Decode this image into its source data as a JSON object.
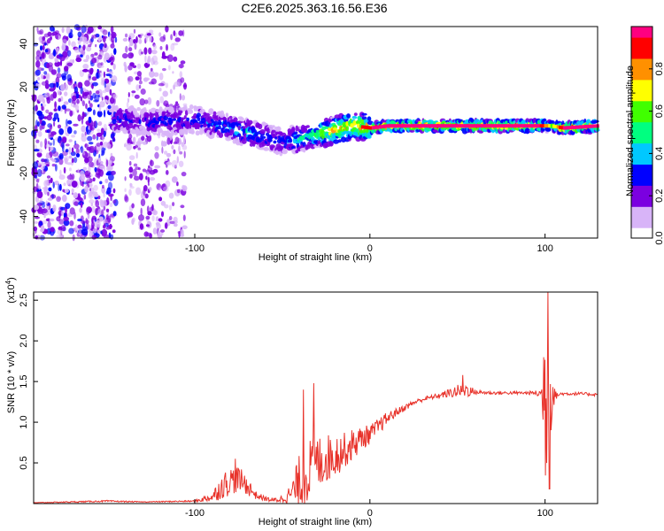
{
  "chart_data": [
    {
      "type": "heatmap",
      "title": "C2E6.2025.363.16.56.E36",
      "xlabel": "Height of straight line (km)",
      "ylabel": "Frequency (Hz)",
      "xlim": [
        -192,
        130
      ],
      "ylim": [
        -50,
        48
      ],
      "xticks": [
        -100,
        0,
        100
      ],
      "yticks": [
        -40,
        -20,
        0,
        20,
        40
      ],
      "colorbar": {
        "label": "Normalized spectral amplitude",
        "range": [
          0,
          1
        ],
        "ticks": [
          "0.0",
          "0.2",
          "0.4",
          "0.6",
          "0.8"
        ],
        "colors": [
          "#ffffff",
          "#d8b4f8",
          "#7b00e0",
          "#0000ff",
          "#00c8ff",
          "#00ff80",
          "#40ff00",
          "#ffff00",
          "#ff9000",
          "#ff0000",
          "#ff0080"
        ]
      },
      "ridge": {
        "description_points_x": [
          -145,
          -130,
          -110,
          -100,
          -90,
          -80,
          -70,
          -60,
          -50,
          -40,
          -30,
          -20,
          -10,
          0,
          10,
          20,
          40,
          60,
          80,
          90,
          95,
          100,
          103,
          110,
          130
        ],
        "description_points_y": [
          5,
          4,
          4,
          5,
          3,
          1,
          -1,
          -3,
          -5,
          -4,
          -2,
          0,
          2,
          1,
          2,
          2,
          2,
          2,
          2,
          2,
          2,
          2,
          2,
          1,
          2
        ],
        "amplitude": [
          0.35,
          0.35,
          0.35,
          0.35,
          0.4,
          0.45,
          0.5,
          0.45,
          0.35,
          0.55,
          0.65,
          0.85,
          0.9,
          0.95,
          1.0,
          1.0,
          1.0,
          1.0,
          1.0,
          1.0,
          1.0,
          0.8,
          0.6,
          1.0,
          1.0
        ]
      },
      "noise_bands": [
        {
          "x_range": [
            -192,
            -145
          ],
          "density": "high"
        },
        {
          "x_range": [
            -140,
            -105
          ],
          "density": "medium"
        }
      ]
    },
    {
      "type": "line",
      "title": "",
      "xlabel": "Height of straight line (km)",
      "ylabel": "SNR (10 * v/v)",
      "y_multiplier": "(x10^4)",
      "y_multiplier_base": "(x10",
      "y_multiplier_exp": "4",
      "y_multiplier_close": ")",
      "xlim": [
        -192,
        130
      ],
      "ylim": [
        0,
        2.6
      ],
      "xticks": [
        -100,
        0,
        100
      ],
      "yticks": [
        0.5,
        1.0,
        1.5,
        2.0,
        2.5
      ],
      "ytick_labels": [
        "0.5",
        "1.0",
        "1.5",
        "2.0",
        "2.5"
      ],
      "series": [
        {
          "name": "SNR",
          "color": "#e8322a",
          "envelope_x": [
            -192,
            -150,
            -130,
            -100,
            -90,
            -85,
            -80,
            -75,
            -70,
            -65,
            -60,
            -55,
            -50,
            -45,
            -40,
            -35,
            -30,
            -25,
            -20,
            -15,
            -10,
            -5,
            0,
            5,
            10,
            15,
            20,
            25,
            30,
            40,
            50,
            55,
            60,
            70,
            80,
            90,
            95,
            98,
            100,
            102,
            104,
            106,
            110,
            120,
            130
          ],
          "envelope_mean": [
            0.01,
            0.03,
            0.02,
            0.03,
            0.08,
            0.2,
            0.28,
            0.3,
            0.22,
            0.1,
            0.06,
            0.04,
            0.06,
            0.12,
            0.28,
            0.4,
            0.5,
            0.55,
            0.6,
            0.65,
            0.72,
            0.8,
            0.85,
            0.95,
            1.05,
            1.12,
            1.18,
            1.24,
            1.28,
            1.33,
            1.38,
            1.4,
            1.37,
            1.36,
            1.36,
            1.36,
            1.36,
            1.34,
            1.4,
            1.3,
            1.38,
            1.33,
            1.35,
            1.35,
            1.34
          ],
          "envelope_amp": [
            0.004,
            0.01,
            0.005,
            0.01,
            0.06,
            0.15,
            0.18,
            0.16,
            0.12,
            0.05,
            0.03,
            0.03,
            0.05,
            0.12,
            0.35,
            0.4,
            0.35,
            0.3,
            0.28,
            0.22,
            0.2,
            0.15,
            0.12,
            0.1,
            0.08,
            0.05,
            0.04,
            0.03,
            0.03,
            0.03,
            0.08,
            0.1,
            0.03,
            0.02,
            0.02,
            0.02,
            0.03,
            0.1,
            1.2,
            1.0,
            0.3,
            0.05,
            0.02,
            0.02,
            0.02
          ],
          "peaks": [
            {
              "x": 101.5,
              "y": 2.6
            },
            {
              "x": 102.5,
              "y": 0.18
            },
            {
              "x": -32,
              "y": 1.48
            },
            {
              "x": -38,
              "y": 1.4
            },
            {
              "x": 53,
              "y": 1.58
            },
            {
              "x": -77,
              "y": 0.55
            }
          ]
        }
      ]
    }
  ]
}
